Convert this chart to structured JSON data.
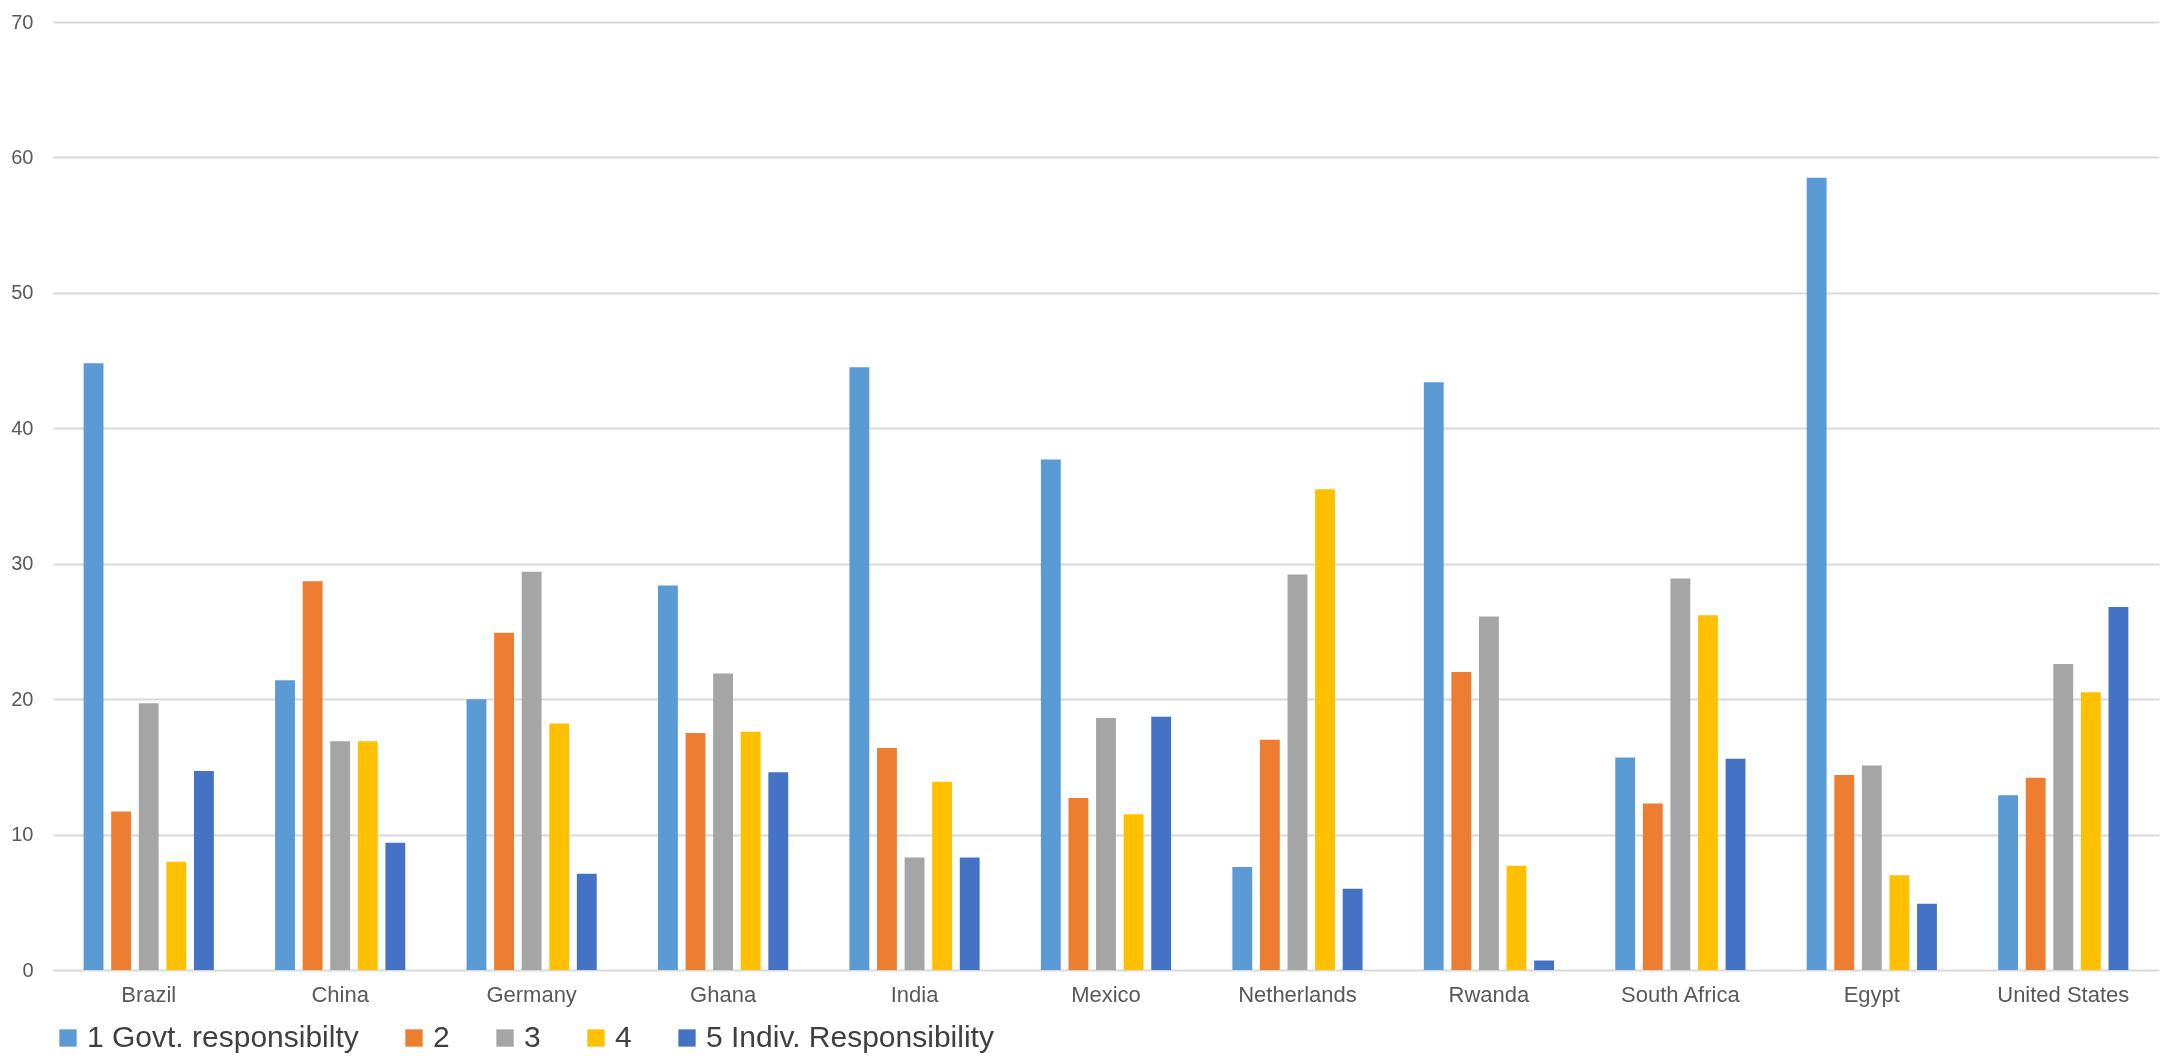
{
  "chart_data": {
    "type": "bar",
    "categories": [
      null,
      "Brazil",
      "China",
      "Germany",
      "Ghana",
      "India",
      "Mexico",
      "Netherlands",
      "Rwanda",
      "South Africa",
      "Egypt",
      "United States"
    ],
    "series": [
      {
        "name": "1 Govt. responsibilty",
        "color": "#5b9bd5",
        "values": [
          null,
          44.8,
          21.4,
          20.0,
          28.4,
          44.5,
          37.7,
          7.6,
          43.4,
          15.7,
          58.5,
          12.9
        ]
      },
      {
        "name": "2",
        "color": "#ed7d31",
        "values": [
          null,
          11.7,
          28.7,
          24.9,
          17.5,
          16.4,
          12.7,
          17.0,
          22.0,
          12.3,
          14.4,
          14.2
        ]
      },
      {
        "name": "3",
        "color": "#a5a5a5",
        "values": [
          null,
          19.7,
          16.9,
          29.4,
          21.9,
          8.3,
          18.6,
          29.2,
          26.1,
          28.9,
          15.1,
          22.6
        ]
      },
      {
        "name": "4",
        "color": "#ffc000",
        "values": [
          null,
          8.0,
          16.9,
          18.2,
          17.6,
          13.9,
          11.5,
          35.5,
          7.7,
          26.2,
          7.0,
          20.5
        ]
      },
      {
        "name": "5 Indiv. Responsibility",
        "color": "#4472c4",
        "values": [
          null,
          14.7,
          9.4,
          7.1,
          14.6,
          8.3,
          18.7,
          6.0,
          0.7,
          15.6,
          4.9,
          26.8
        ]
      }
    ],
    "ylim": [
      0,
      70
    ],
    "yticks": [
      0,
      10,
      20,
      30,
      40,
      50,
      60,
      70
    ],
    "grid": "y",
    "legend": "bottom"
  }
}
